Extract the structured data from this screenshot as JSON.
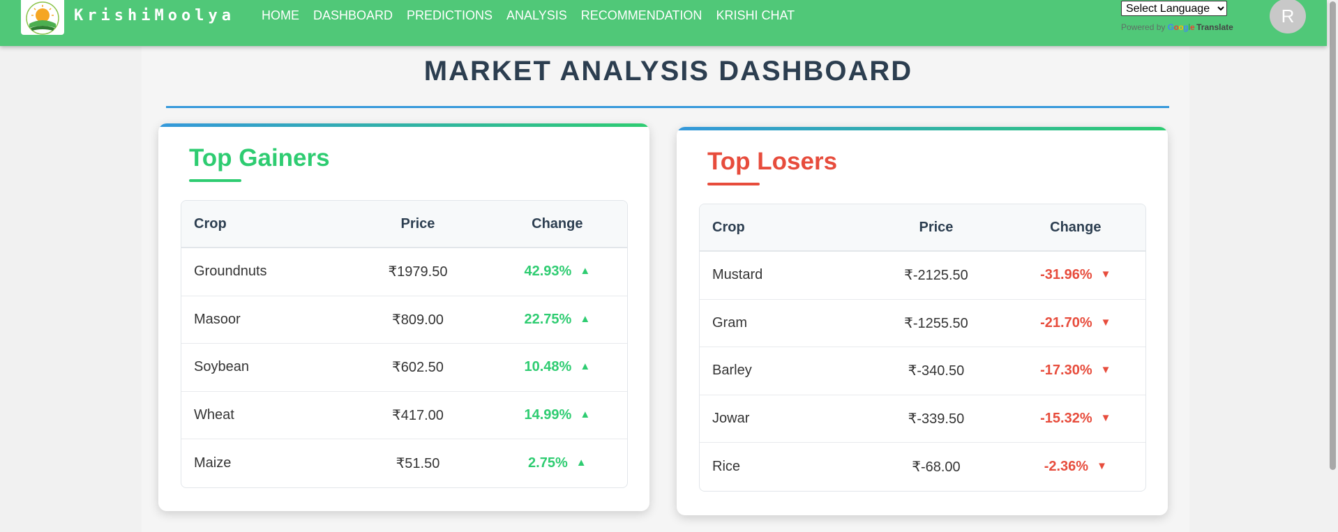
{
  "navbar": {
    "brand": "KrishiMoolya",
    "links": [
      "HOME",
      "DASHBOARD",
      "PREDICTIONS",
      "ANALYSIS",
      "RECOMMENDATION",
      "KRISHI CHAT"
    ],
    "language_select": "Select Language",
    "powered_by": "Powered by",
    "google": "Google",
    "translate": "Translate",
    "avatar_initial": "R",
    "brand_color": "#50c878"
  },
  "page": {
    "title": "MARKET ANALYSIS DASHBOARD"
  },
  "gainers": {
    "title": "Top Gainers",
    "headers": {
      "crop": "Crop",
      "price": "Price",
      "change": "Change"
    },
    "arrow": "▲",
    "rows": [
      {
        "crop": "Groundnuts",
        "price": "₹1979.50",
        "change": "42.93%"
      },
      {
        "crop": "Masoor",
        "price": "₹809.00",
        "change": "22.75%"
      },
      {
        "crop": "Soybean",
        "price": "₹602.50",
        "change": "10.48%"
      },
      {
        "crop": "Wheat",
        "price": "₹417.00",
        "change": "14.99%"
      },
      {
        "crop": "Maize",
        "price": "₹51.50",
        "change": "2.75%"
      }
    ],
    "color": "#2ecc71"
  },
  "losers": {
    "title": "Top Losers",
    "headers": {
      "crop": "Crop",
      "price": "Price",
      "change": "Change"
    },
    "arrow": "▼",
    "rows": [
      {
        "crop": "Mustard",
        "price": "₹-2125.50",
        "change": "-31.96%"
      },
      {
        "crop": "Gram",
        "price": "₹-1255.50",
        "change": "-21.70%"
      },
      {
        "crop": "Barley",
        "price": "₹-340.50",
        "change": "-17.30%"
      },
      {
        "crop": "Jowar",
        "price": "₹-339.50",
        "change": "-15.32%"
      },
      {
        "crop": "Rice",
        "price": "₹-68.00",
        "change": "-2.36%"
      }
    ],
    "color": "#e74c3c"
  }
}
